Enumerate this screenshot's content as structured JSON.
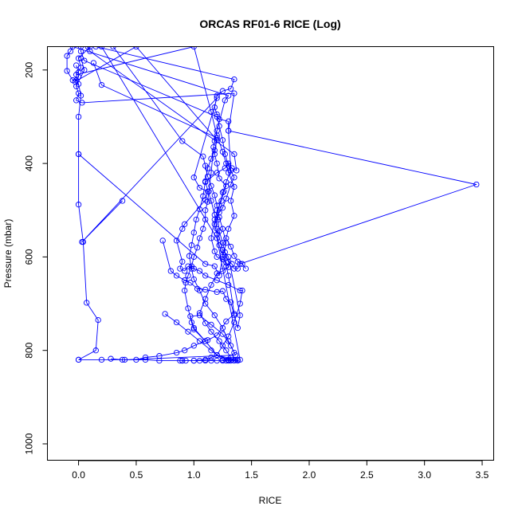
{
  "chart_data": {
    "type": "line",
    "title": "ORCAS RF01-6 RICE (Log)",
    "xlabel": "RICE",
    "ylabel": "Pressure (mbar)",
    "xlim": [
      -0.27,
      3.6
    ],
    "ylim": [
      1035,
      150
    ],
    "y_inverted": true,
    "grid": false,
    "legend": "none",
    "x_ticks": [
      0.0,
      0.5,
      1.0,
      1.5,
      2.0,
      2.5,
      3.0,
      3.5
    ],
    "x_tick_labels": [
      "0.0",
      "0.5",
      "1.0",
      "1.5",
      "2.0",
      "2.5",
      "3.0",
      "3.5"
    ],
    "y_ticks": [
      200,
      400,
      600,
      800,
      1000
    ],
    "y_tick_labels": [
      "200",
      "400",
      "600",
      "800",
      "1000"
    ],
    "series": [
      {
        "color": "#0000ff",
        "points": [
          [
            0.0,
            820
          ],
          [
            0.15,
            800
          ],
          [
            0.17,
            735
          ],
          [
            0.07,
            698
          ],
          [
            0.04,
            568
          ],
          [
            0.0,
            488
          ],
          [
            0.0,
            380
          ],
          [
            0.0,
            300
          ],
          [
            0.02,
            255
          ],
          [
            0.0,
            230
          ],
          [
            -0.02,
            222
          ],
          [
            -0.05,
            222
          ],
          [
            -0.1,
            202
          ],
          [
            -0.1,
            170
          ],
          [
            -0.07,
            160
          ],
          [
            -0.05,
            150
          ],
          [
            1.3,
            255
          ],
          [
            1.27,
            265
          ],
          [
            1.2,
            330
          ],
          [
            1.18,
            352
          ],
          [
            1.17,
            365
          ],
          [
            1.15,
            420
          ],
          [
            1.13,
            460
          ],
          [
            1.12,
            482
          ],
          [
            1.1,
            500
          ],
          [
            1.1,
            520
          ],
          [
            1.08,
            540
          ],
          [
            1.05,
            560
          ],
          [
            1.03,
            580
          ],
          [
            1.0,
            600
          ],
          [
            0.98,
            620
          ],
          [
            0.95,
            640
          ],
          [
            0.93,
            655
          ],
          [
            0.92,
            672
          ],
          [
            0.95,
            710
          ],
          [
            0.98,
            740
          ],
          [
            1.0,
            755
          ],
          [
            1.1,
            780
          ],
          [
            1.2,
            810
          ],
          [
            1.3,
            820
          ],
          [
            1.38,
            820
          ]
        ]
      },
      {
        "color": "#0000ff",
        "points": [
          [
            0.02,
            175
          ],
          [
            0.05,
            200
          ],
          [
            -0.02,
            235
          ],
          [
            0.0,
            250
          ],
          [
            -0.02,
            265
          ],
          [
            0.03,
            270
          ],
          [
            1.35,
            250
          ],
          [
            1.3,
            330
          ],
          [
            1.32,
            415
          ],
          [
            1.28,
            440
          ],
          [
            1.26,
            460
          ],
          [
            1.24,
            480
          ],
          [
            1.2,
            500
          ],
          [
            1.21,
            520
          ],
          [
            1.22,
            545
          ],
          [
            1.25,
            570
          ],
          [
            1.27,
            590
          ],
          [
            1.3,
            610
          ],
          [
            1.33,
            615
          ],
          [
            1.35,
            625
          ],
          [
            1.38,
            625
          ],
          [
            1.4,
            615
          ],
          [
            3.45,
            445
          ],
          [
            1.3,
            330
          ],
          [
            1.3,
            310
          ],
          [
            1.22,
            305
          ],
          [
            1.2,
            300
          ],
          [
            0.05,
            180
          ],
          [
            0.02,
            160
          ],
          [
            0.02,
            150
          ]
        ]
      },
      {
        "color": "#0000ff",
        "points": [
          [
            0.38,
            480
          ],
          [
            0.03,
            568
          ],
          [
            1.2,
            260
          ],
          [
            1.0,
            430
          ],
          [
            1.05,
            452
          ],
          [
            1.12,
            460
          ],
          [
            1.1,
            478
          ],
          [
            0.92,
            530
          ],
          [
            0.9,
            540
          ],
          [
            0.85,
            565
          ],
          [
            0.9,
            610
          ],
          [
            0.88,
            625
          ],
          [
            0.92,
            630
          ],
          [
            0.95,
            620
          ],
          [
            1.0,
            625
          ],
          [
            1.05,
            630
          ],
          [
            1.1,
            640
          ],
          [
            1.2,
            650
          ],
          [
            1.3,
            660
          ],
          [
            1.4,
            672
          ],
          [
            1.42,
            672
          ],
          [
            1.4,
            700
          ],
          [
            1.35,
            740
          ],
          [
            1.3,
            770
          ],
          [
            1.25,
            790
          ],
          [
            1.2,
            810
          ],
          [
            1.15,
            815
          ],
          [
            1.1,
            820
          ],
          [
            1.0,
            822
          ],
          [
            0.9,
            822
          ]
        ]
      },
      {
        "color": "#0000ff",
        "points": [
          [
            0.73,
            565
          ],
          [
            0.8,
            630
          ],
          [
            0.85,
            640
          ],
          [
            0.92,
            650
          ],
          [
            0.97,
            655
          ],
          [
            1.03,
            668
          ],
          [
            1.1,
            670
          ],
          [
            1.2,
            675
          ],
          [
            1.25,
            673
          ],
          [
            1.28,
            690
          ],
          [
            1.32,
            697
          ],
          [
            1.35,
            725
          ],
          [
            1.38,
            752
          ],
          [
            1.4,
            725
          ],
          [
            1.3,
            600
          ],
          [
            1.25,
            585
          ],
          [
            1.2,
            540
          ],
          [
            1.18,
            510
          ],
          [
            1.15,
            480
          ],
          [
            1.1,
            440
          ],
          [
            1.2,
            420
          ],
          [
            1.27,
            410
          ],
          [
            1.3,
            400
          ],
          [
            1.33,
            410
          ],
          [
            1.37,
            415
          ],
          [
            1.35,
            380
          ],
          [
            0.1,
            160
          ],
          [
            0.08,
            150
          ]
        ]
      },
      {
        "color": "#0000ff",
        "points": [
          [
            0.75,
            722
          ],
          [
            0.85,
            740
          ],
          [
            0.95,
            760
          ],
          [
            1.05,
            780
          ],
          [
            1.15,
            800
          ],
          [
            1.25,
            820
          ],
          [
            1.3,
            820
          ],
          [
            1.33,
            820
          ],
          [
            1.36,
            820
          ],
          [
            1.2,
            810
          ],
          [
            1.1,
            780
          ],
          [
            1.0,
            752
          ],
          [
            0.97,
            727
          ],
          [
            1.05,
            725
          ],
          [
            1.15,
            745
          ],
          [
            1.25,
            765
          ],
          [
            1.32,
            790
          ],
          [
            1.36,
            810
          ],
          [
            0.4,
            820
          ],
          [
            0.2,
            820
          ],
          [
            0.0,
            820
          ]
        ]
      },
      {
        "color": "#0000ff",
        "points": [
          [
            0.5,
            820
          ],
          [
            0.58,
            815
          ],
          [
            0.7,
            812
          ],
          [
            0.85,
            805
          ],
          [
            0.92,
            800
          ],
          [
            1.0,
            790
          ],
          [
            1.12,
            778
          ],
          [
            1.2,
            768
          ],
          [
            1.28,
            738
          ],
          [
            1.35,
            722
          ],
          [
            1.3,
            640
          ],
          [
            1.28,
            620
          ],
          [
            1.25,
            595
          ],
          [
            1.22,
            575
          ],
          [
            1.2,
            552
          ],
          [
            1.18,
            530
          ],
          [
            1.22,
            505
          ],
          [
            1.25,
            495
          ],
          [
            1.28,
            475
          ],
          [
            1.32,
            445
          ],
          [
            1.35,
            430
          ],
          [
            1.3,
            405
          ],
          [
            1.27,
            380
          ],
          [
            1.25,
            350
          ],
          [
            1.22,
            320
          ],
          [
            1.2,
            295
          ],
          [
            1.18,
            280
          ],
          [
            1.2,
            255
          ],
          [
            1.25,
            245
          ],
          [
            1.32,
            240
          ],
          [
            1.35,
            220
          ],
          [
            0.15,
            150
          ]
        ]
      },
      {
        "color": "#0000ff",
        "points": [
          [
            0.28,
            818
          ],
          [
            0.38,
            820
          ],
          [
            0.58,
            820
          ],
          [
            0.7,
            822
          ],
          [
            0.88,
            822
          ],
          [
            0.9,
            822
          ],
          [
            0.93,
            822
          ],
          [
            1.0,
            822
          ],
          [
            1.05,
            822
          ],
          [
            1.1,
            822
          ],
          [
            1.15,
            822
          ],
          [
            1.2,
            822
          ],
          [
            1.25,
            822
          ],
          [
            1.28,
            822
          ],
          [
            1.3,
            822
          ],
          [
            1.32,
            822
          ],
          [
            1.35,
            822
          ],
          [
            1.38,
            822
          ],
          [
            1.4,
            820
          ],
          [
            1.2,
            560
          ],
          [
            0.2,
            150
          ]
        ]
      },
      {
        "color": "#0000ff",
        "points": [
          [
            0.13,
            185
          ],
          [
            0.2,
            232
          ],
          [
            1.2,
            345
          ],
          [
            1.18,
            380
          ],
          [
            1.2,
            400
          ],
          [
            1.22,
            432
          ],
          [
            1.28,
            448
          ],
          [
            1.25,
            462
          ],
          [
            1.22,
            490
          ],
          [
            1.18,
            520
          ],
          [
            1.15,
            560
          ],
          [
            1.18,
            588
          ],
          [
            1.2,
            600
          ],
          [
            1.25,
            605
          ],
          [
            1.28,
            612
          ],
          [
            1.3,
            622
          ],
          [
            1.25,
            630
          ],
          [
            1.2,
            635
          ],
          [
            1.15,
            660
          ],
          [
            1.1,
            690
          ],
          [
            1.05,
            720
          ],
          [
            1.1,
            742
          ],
          [
            1.15,
            760
          ],
          [
            1.22,
            780
          ],
          [
            1.28,
            800
          ],
          [
            1.32,
            815
          ]
        ]
      },
      {
        "color": "#0000ff",
        "points": [
          [
            -0.02,
            190
          ],
          [
            0.0,
            205
          ],
          [
            0.0,
            215
          ],
          [
            -0.03,
            225
          ],
          [
            0.5,
            150
          ],
          [
            1.2,
            350
          ],
          [
            1.18,
            372
          ],
          [
            1.15,
            390
          ],
          [
            1.12,
            410
          ],
          [
            1.1,
            438
          ],
          [
            1.08,
            470
          ],
          [
            1.05,
            498
          ],
          [
            1.02,
            520
          ],
          [
            1.0,
            548
          ],
          [
            0.98,
            575
          ],
          [
            0.96,
            598
          ],
          [
            0.98,
            625
          ],
          [
            1.0,
            648
          ],
          [
            1.05,
            672
          ],
          [
            1.1,
            700
          ],
          [
            1.18,
            725
          ],
          [
            1.25,
            752
          ],
          [
            1.3,
            780
          ],
          [
            1.35,
            805
          ]
        ]
      },
      {
        "color": "#0000ff",
        "points": [
          [
            0.1,
            150
          ],
          [
            0.0,
            175
          ],
          [
            0.02,
            195
          ],
          [
            -0.02,
            210
          ],
          [
            1.0,
            150
          ],
          [
            1.15,
            290
          ],
          [
            1.2,
            340
          ],
          [
            1.25,
            375
          ],
          [
            1.28,
            400
          ],
          [
            1.3,
            420
          ],
          [
            1.35,
            450
          ],
          [
            1.32,
            480
          ],
          [
            1.35,
            512
          ],
          [
            1.3,
            540
          ],
          [
            1.28,
            560
          ],
          [
            1.32,
            578
          ],
          [
            1.35,
            598
          ],
          [
            1.38,
            610
          ],
          [
            1.42,
            615
          ],
          [
            1.45,
            625
          ]
        ]
      },
      {
        "color": "#0000ff",
        "points": [
          [
            0.0,
            380
          ],
          [
            1.1,
            615
          ],
          [
            1.18,
            620
          ],
          [
            1.22,
            640
          ],
          [
            1.25,
            600
          ],
          [
            1.28,
            570
          ],
          [
            1.25,
            540
          ],
          [
            1.22,
            515
          ],
          [
            1.2,
            490
          ],
          [
            1.18,
            468
          ],
          [
            1.15,
            448
          ],
          [
            1.12,
            428
          ],
          [
            1.1,
            405
          ],
          [
            1.08,
            385
          ],
          [
            0.9,
            352
          ],
          [
            0.3,
            150
          ]
        ]
      }
    ]
  }
}
